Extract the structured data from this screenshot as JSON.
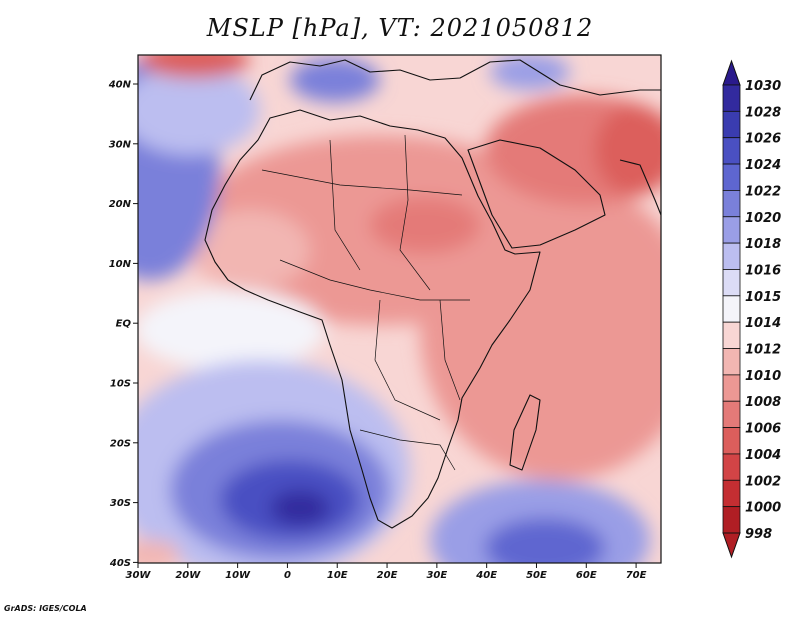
{
  "title": "MSLP [hPa], VT: 2021050812",
  "credit": "GrADS: IGES/COLA",
  "map": {
    "variable": "Mean sea level pressure",
    "units": "hPa",
    "valid_time": "2021050812",
    "lon_range": [
      -30,
      75
    ],
    "lat_range": [
      -40,
      45
    ],
    "lon_ticks": [
      "30W",
      "20W",
      "10W",
      "0",
      "10E",
      "20E",
      "30E",
      "40E",
      "50E",
      "60E",
      "70E"
    ],
    "lat_ticks": [
      "40N",
      "30N",
      "20N",
      "10N",
      "EQ",
      "10S",
      "20S",
      "30S",
      "40S"
    ]
  },
  "colorbar": {
    "levels": [
      "1030",
      "1028",
      "1026",
      "1024",
      "1022",
      "1020",
      "1018",
      "1016",
      "1015",
      "1014",
      "1012",
      "1010",
      "1008",
      "1006",
      "1004",
      "1002",
      "1000",
      "998"
    ],
    "colors": [
      "#2a1a8c",
      "#322a9e",
      "#3a3cb0",
      "#4a50c2",
      "#5e66d0",
      "#7a80da",
      "#9a9ee6",
      "#bcbef0",
      "#dcdcf6",
      "#f4f4fa",
      "#f8d6d4",
      "#f2b6b2",
      "#ec9894",
      "#e47a78",
      "#dc5e5c",
      "#d24446",
      "#c42e32",
      "#b01e24"
    ]
  },
  "features": {
    "high_south_atlantic": "High pressure cell centred near 5E 32S",
    "high_south_indian": "High pressure cell south-east of Madagascar",
    "high_north_atlantic": "Azores high near 35W 25N",
    "low_arabia": "Thermal low over Arabia and Pakistan"
  }
}
